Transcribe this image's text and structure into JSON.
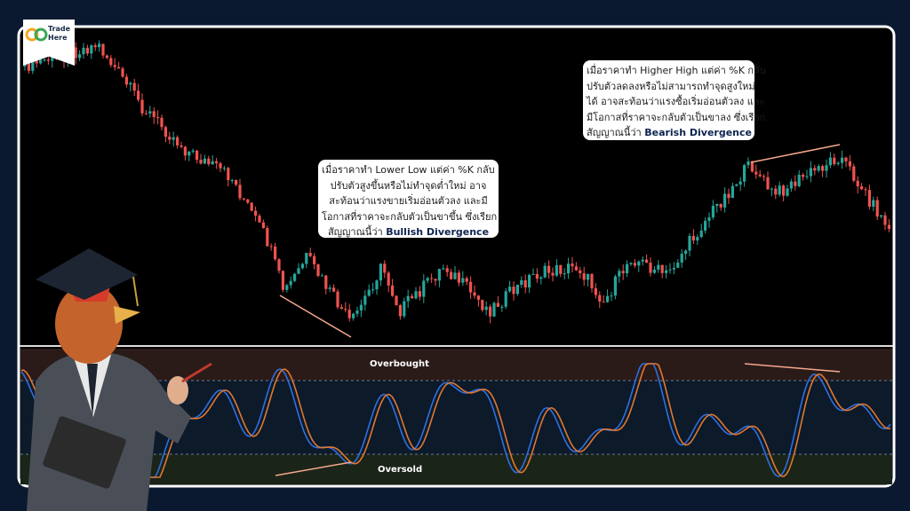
{
  "logo": {
    "line1": "Trade",
    "line2": "Here"
  },
  "annotations": [
    {
      "lines": [
        "เมื่อราคาทำ Higher High แต่ค่า %K กลับ",
        "ปรับตัวลดลงหรือไม่สามารถทำจุดสูงใหม่",
        "ได้ อาจสะท้อนว่าแรงซื้อเริ่มอ่อนตัวลง และ",
        "มีโอกาสที่ราคาจะกลับตัวเป็นขาลง ซึ่งเรียก"
      ],
      "final_prefix": "สัญญาณนี้ว่า",
      "emphasis": "Bearish Divergence"
    },
    {
      "lines": [
        "เมื่อราคาทำ Lower Low แต่ค่า %K กลับ",
        "ปรับตัวสูงขึ้นหรือไม่ทำจุดต่ำใหม่ อาจ",
        "สะท้อนว่าแรงขายเริ่มอ่อนตัวลง และมี",
        "โอกาสที่ราคาจะกลับตัวเป็นขาขึ้น ซึ่งเรียก"
      ],
      "final_prefix": "สัญญาณนี้ว่า",
      "emphasis": "Bullish Divergence"
    }
  ],
  "oscillator": {
    "upper_label": "Overbought",
    "lower_label": "Oversold"
  }
}
